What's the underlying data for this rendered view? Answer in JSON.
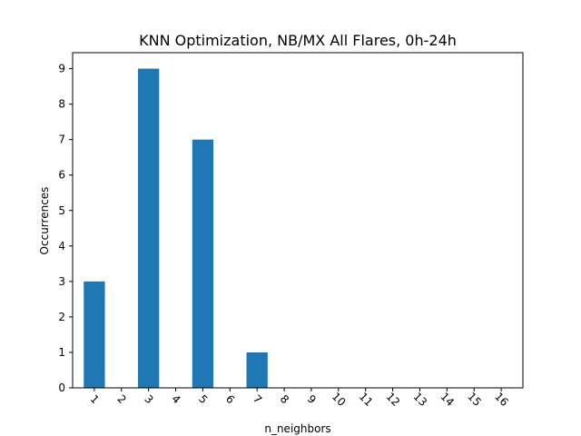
{
  "chart_data": {
    "type": "bar",
    "title": "KNN Optimization, NB/MX All Flares, 0h-24h",
    "xlabel": "n_neighbors",
    "ylabel": "Occurrences",
    "categories": [
      "1",
      "2",
      "3",
      "4",
      "5",
      "6",
      "7",
      "8",
      "9",
      "10",
      "11",
      "12",
      "13",
      "14",
      "15",
      "16"
    ],
    "values": [
      3,
      0,
      9,
      0,
      7,
      0,
      1,
      0,
      0,
      0,
      0,
      0,
      0,
      0,
      0,
      0
    ],
    "ylim": [
      0,
      9.45
    ],
    "yticks": [
      0,
      1,
      2,
      3,
      4,
      5,
      6,
      7,
      8,
      9
    ],
    "xtick_rotation": 45,
    "grid": false,
    "legend": "none",
    "bar_color": "#1f77b4"
  }
}
